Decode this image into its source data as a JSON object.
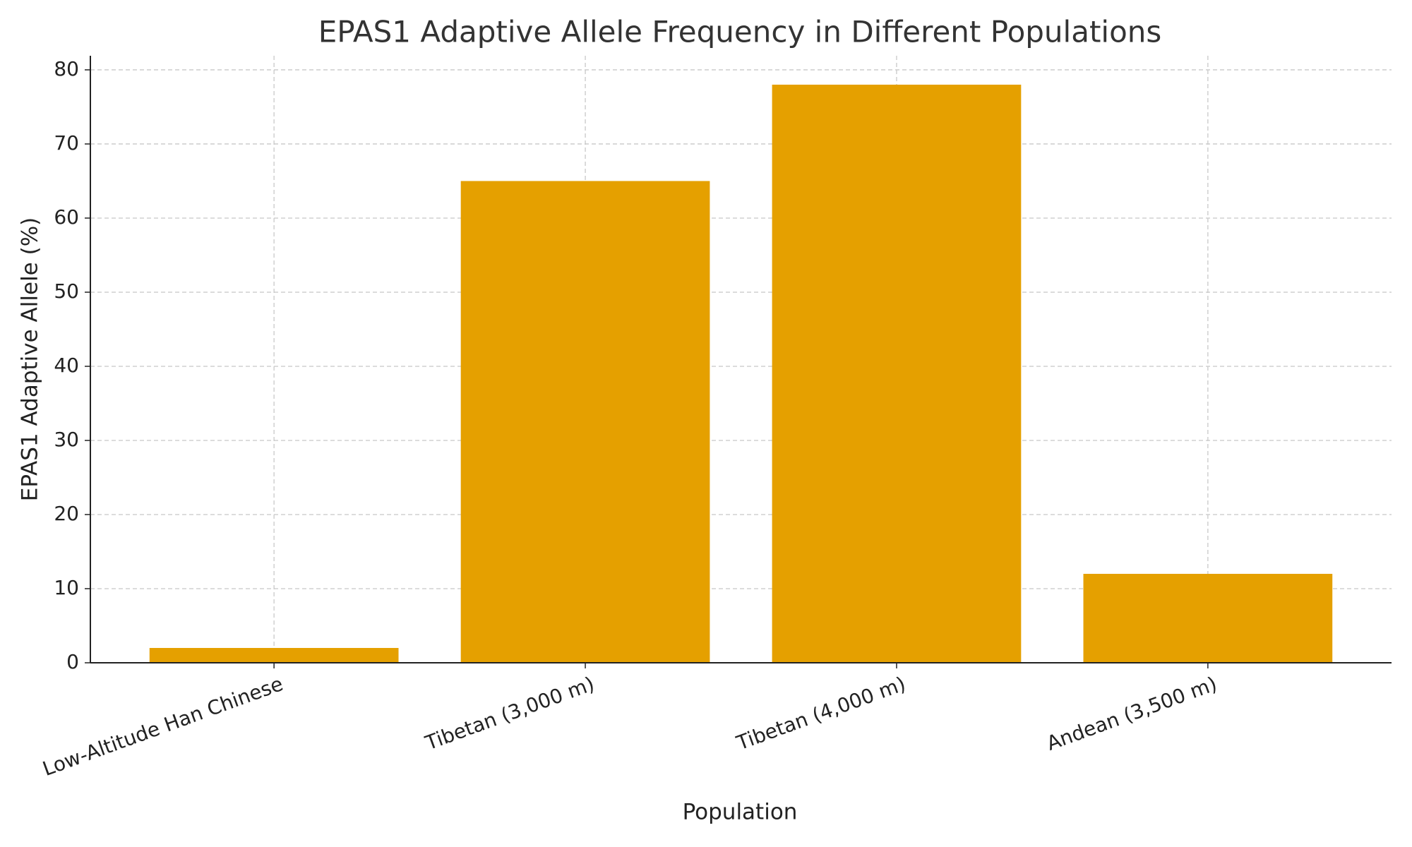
{
  "chart_data": {
    "type": "bar",
    "title": "EPAS1 Adaptive Allele Frequency in Different Populations",
    "xlabel": "Population",
    "ylabel": "EPAS1 Adaptive Allele (%)",
    "categories": [
      "Low-Altitude Han Chinese",
      "Tibetan (3,000 m)",
      "Tibetan (4,000 m)",
      "Andean (3,500 m)"
    ],
    "values": [
      2,
      65,
      78,
      12
    ],
    "color": "#e5a000",
    "ylim": [
      0,
      81.9
    ],
    "yticks": [
      0,
      10,
      20,
      30,
      40,
      50,
      60,
      70,
      80
    ],
    "grid": true
  }
}
